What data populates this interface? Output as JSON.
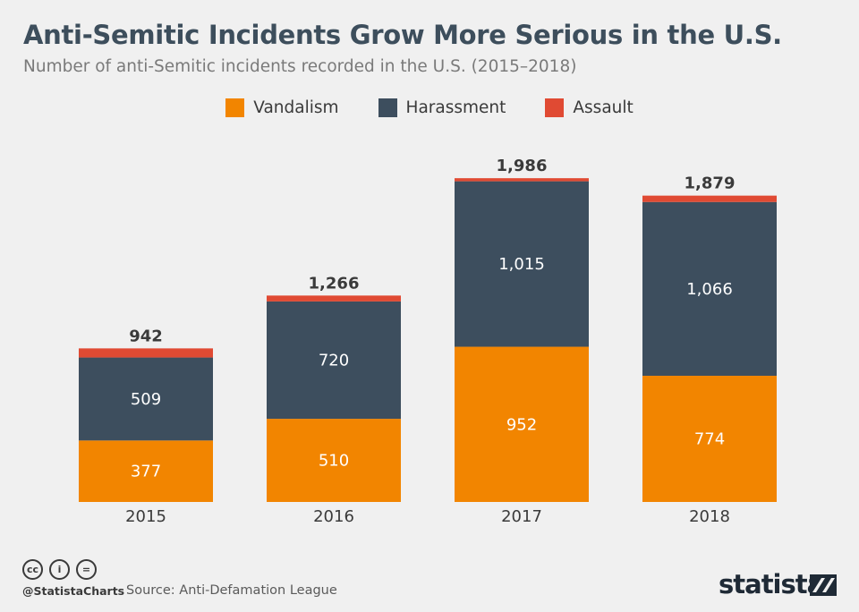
{
  "header": {
    "title": "Anti-Semitic Incidents Grow More Serious in the U.S.",
    "subtitle": "Number of anti-Semitic incidents recorded in the U.S. (2015–2018)"
  },
  "legend": [
    {
      "label": "Vandalism",
      "color": "#f28500"
    },
    {
      "label": "Harassment",
      "color": "#3d4e5e"
    },
    {
      "label": "Assault",
      "color": "#e04a33"
    }
  ],
  "chart_data": {
    "type": "bar",
    "stacked": true,
    "categories": [
      "2015",
      "2016",
      "2017",
      "2018"
    ],
    "series": [
      {
        "name": "Vandalism",
        "color": "#f28500",
        "values": [
          377,
          510,
          952,
          774
        ]
      },
      {
        "name": "Harassment",
        "color": "#3d4e5e",
        "values": [
          509,
          720,
          1015,
          1066
        ]
      },
      {
        "name": "Assault",
        "color": "#e04a33",
        "values": [
          56,
          36,
          19,
          39
        ]
      }
    ],
    "segment_labels": [
      [
        "377",
        "510",
        "952",
        "774"
      ],
      [
        "509",
        "720",
        "1,015",
        "1,066"
      ]
    ],
    "totals": [
      942,
      1266,
      1986,
      1879
    ],
    "total_labels": [
      "942",
      "1,266",
      "1,986",
      "1,879"
    ],
    "title": "Anti-Semitic Incidents Grow More Serious in the U.S.",
    "subtitle": "Number of anti-Semitic incidents recorded in the U.S. (2015–2018)",
    "ylim": [
      0,
      2000
    ],
    "grid": false,
    "legend_position": "top-center"
  },
  "footer": {
    "icons": [
      "creative-commons-icon",
      "attribution-icon",
      "no-derivatives-icon"
    ],
    "icon_glyphs": [
      "cc",
      "i",
      "="
    ],
    "handle": "@StatistaCharts",
    "source": "Source: Anti-Defamation League",
    "logo": "statista"
  }
}
